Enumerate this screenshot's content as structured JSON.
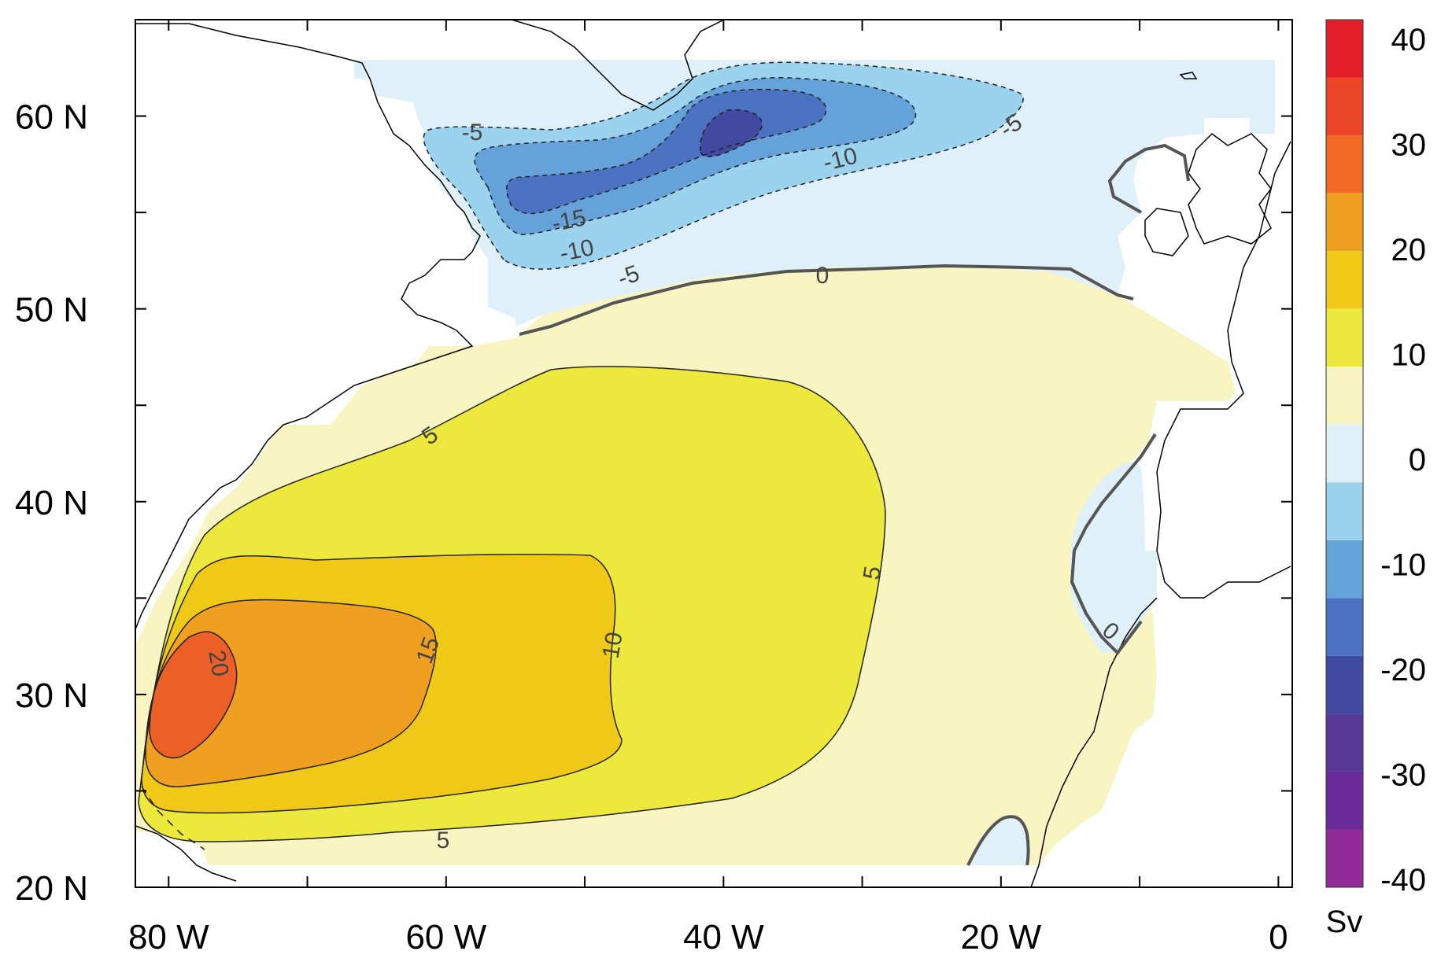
{
  "map": {
    "region": "North Atlantic",
    "x_ticks": [
      {
        "value": -80,
        "label": "80 W"
      },
      {
        "value": -60,
        "label": "60 W"
      },
      {
        "value": -40,
        "label": "40 W"
      },
      {
        "value": -20,
        "label": "20 W"
      },
      {
        "value": 0,
        "label": "0"
      }
    ],
    "y_ticks": [
      {
        "value": 20,
        "label": "20 N"
      },
      {
        "value": 30,
        "label": "30 N"
      },
      {
        "value": 40,
        "label": "40 N"
      },
      {
        "value": 50,
        "label": "50 N"
      },
      {
        "value": 60,
        "label": "60 N"
      }
    ],
    "contour_labels": [
      {
        "text": "-5"
      },
      {
        "text": "-10"
      },
      {
        "text": "-15"
      },
      {
        "text": "-10"
      },
      {
        "text": "-5"
      },
      {
        "text": "-5"
      },
      {
        "text": "0"
      },
      {
        "text": "0"
      },
      {
        "text": "5"
      },
      {
        "text": "5"
      },
      {
        "text": "5"
      },
      {
        "text": "10"
      },
      {
        "text": "15"
      },
      {
        "text": "20"
      }
    ]
  },
  "colorbar": {
    "unit": "Sv",
    "tick_labels": [
      "40",
      "30",
      "20",
      "10",
      "0",
      "-10",
      "-20",
      "-30",
      "-40"
    ],
    "colors": [
      "#e41f2a",
      "#ec4629",
      "#f06a23",
      "#f0a020",
      "#efc818",
      "#ede83c",
      "#f8f5c2",
      "#dff0f9",
      "#9bd3ee",
      "#66a2da",
      "#4c72c2",
      "#3f4aa0",
      "#5a3a99",
      "#6b2a99",
      "#922a97"
    ]
  }
}
